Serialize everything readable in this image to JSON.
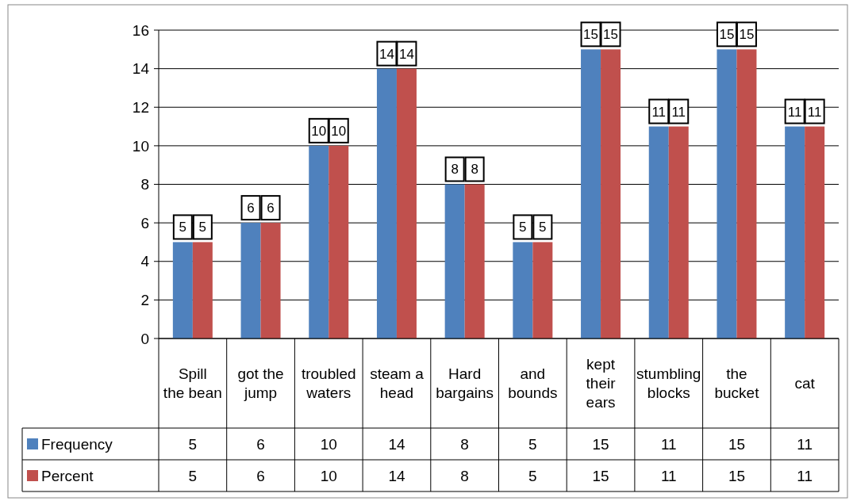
{
  "chart_data": {
    "type": "bar",
    "categories": [
      "Spill the bean",
      "got the jump",
      "troubled waters",
      "steam a head",
      "Hard bargains",
      "and bounds",
      "kept their ears",
      "stumbling blocks",
      "the bucket",
      "cat"
    ],
    "series": [
      {
        "name": "Frequency",
        "color": "#4f81bd",
        "values": [
          5,
          6,
          10,
          14,
          8,
          5,
          15,
          11,
          15,
          11
        ]
      },
      {
        "name": "Percent",
        "color": "#c0504d",
        "values": [
          5,
          6,
          10,
          14,
          8,
          5,
          15,
          11,
          15,
          11
        ]
      }
    ],
    "ylim": [
      0,
      16
    ],
    "yticks": [
      0,
      2,
      4,
      6,
      8,
      10,
      12,
      14,
      16
    ],
    "grid": "y",
    "legend": "bottom",
    "data_labels": true,
    "annotations": [
      {
        "text": "5",
        "x": "Spill the bean",
        "y": 5
      },
      {
        "text": "5",
        "x": "Spill the bean",
        "y": 5
      },
      {
        "text": "6",
        "x": "got the jump",
        "y": 6
      },
      {
        "text": "6",
        "x": "got the jump",
        "y": 6
      },
      {
        "text": "10",
        "x": "troubled waters",
        "y": 10
      },
      {
        "text": "10",
        "x": "troubled waters",
        "y": 10
      },
      {
        "text": "14",
        "x": "steam a head",
        "y": 14
      },
      {
        "text": "14",
        "x": "steam a head",
        "y": 14
      },
      {
        "text": "8",
        "x": "Hard bargains",
        "y": 8
      },
      {
        "text": "8",
        "x": "Hard bargains",
        "y": 8
      },
      {
        "text": "5",
        "x": "and bounds",
        "y": 5
      },
      {
        "text": "5",
        "x": "and bounds",
        "y": 5
      },
      {
        "text": "15",
        "x": "kept their ears",
        "y": 15
      },
      {
        "text": "15",
        "x": "kept their ears",
        "y": 15
      },
      {
        "text": "11",
        "x": "stumbling blocks",
        "y": 11
      },
      {
        "text": "11",
        "x": "stumbling blocks",
        "y": 11
      },
      {
        "text": "15",
        "x": "the bucket",
        "y": 15
      },
      {
        "text": "15",
        "x": "the bucket",
        "y": 15
      },
      {
        "text": "11",
        "x": "cat",
        "y": 11
      },
      {
        "text": "11",
        "x": "cat",
        "y": 11
      }
    ]
  }
}
